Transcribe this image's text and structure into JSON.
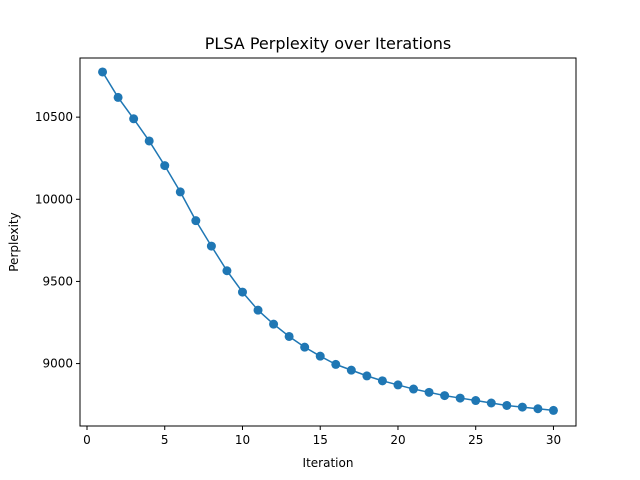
{
  "chart_data": {
    "type": "line",
    "title": "PLSA Perplexity over Iterations",
    "xlabel": "Iteration",
    "ylabel": "Perplexity",
    "xlim": [
      -0.45,
      31.45
    ],
    "ylim": [
      8620,
      10860
    ],
    "xticks": [
      0,
      5,
      10,
      15,
      20,
      25,
      30
    ],
    "yticks": [
      9000,
      9500,
      10000,
      10500
    ],
    "grid": false,
    "series": [
      {
        "color": "#1f77b4",
        "marker": "circle",
        "x": [
          1,
          2,
          3,
          4,
          5,
          6,
          7,
          8,
          9,
          10,
          11,
          12,
          13,
          14,
          15,
          16,
          17,
          18,
          19,
          20,
          21,
          22,
          23,
          24,
          25,
          26,
          27,
          28,
          29,
          30
        ],
        "y": [
          10775,
          10620,
          10490,
          10355,
          10205,
          10045,
          9870,
          9715,
          9565,
          9435,
          9325,
          9240,
          9165,
          9100,
          9045,
          8995,
          8960,
          8925,
          8895,
          8870,
          8845,
          8825,
          8805,
          8790,
          8775,
          8760,
          8745,
          8735,
          8725,
          8715
        ]
      }
    ]
  }
}
